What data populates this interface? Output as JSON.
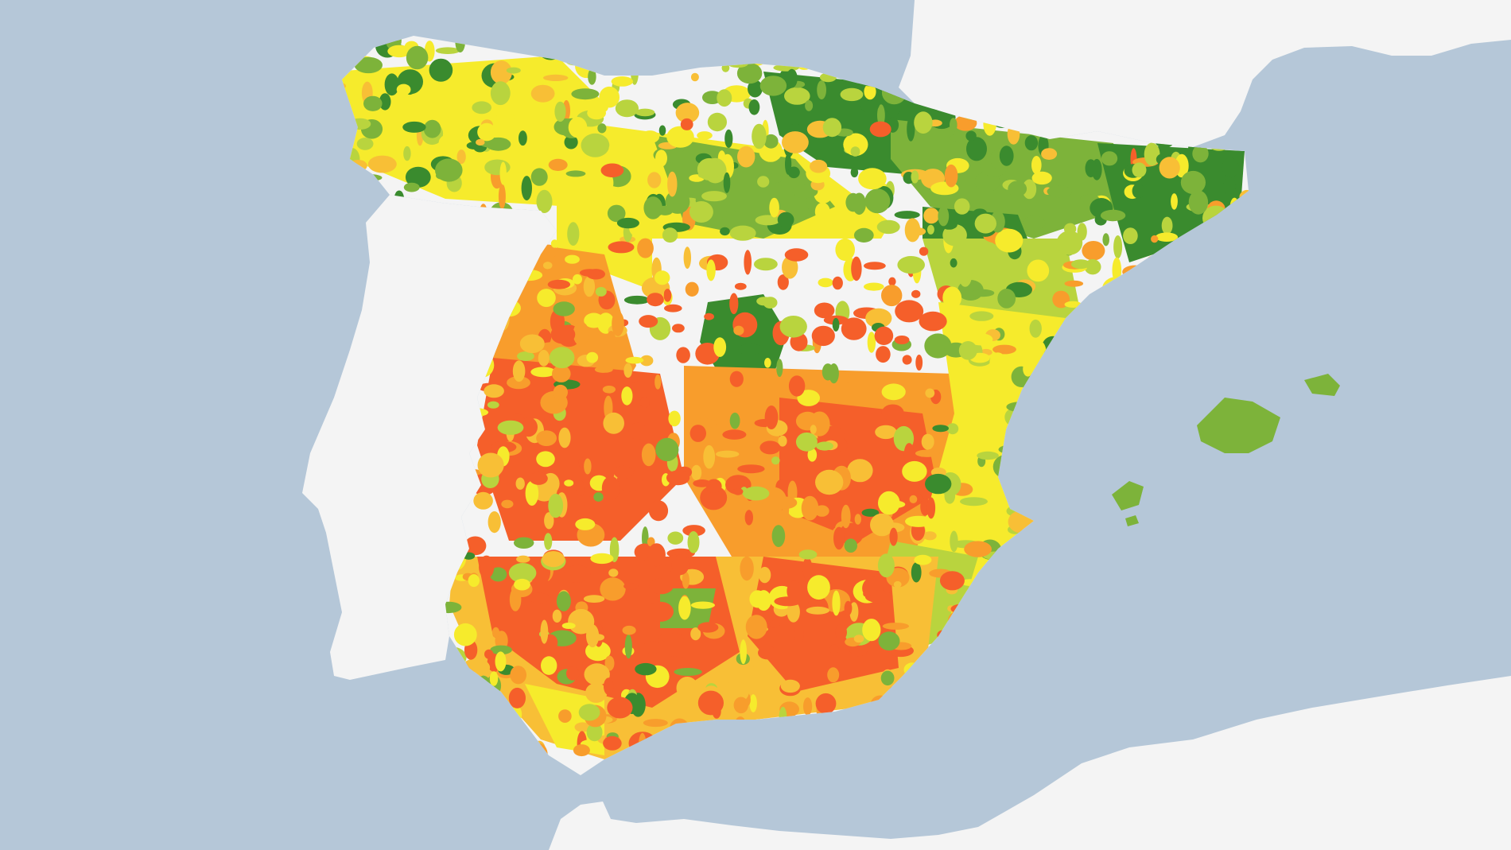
{
  "map": {
    "colors": {
      "sea": "#B5C7D8",
      "land": "#F4F4F4",
      "class_dark_green": "#3A8B2E",
      "class_green": "#7DB33A",
      "class_yellow_green": "#B9D43E",
      "class_yellow": "#F6EB2C",
      "class_light_orange": "#F8BF36",
      "class_orange": "#F89D2C",
      "class_red_orange": "#F55F2A"
    }
  }
}
